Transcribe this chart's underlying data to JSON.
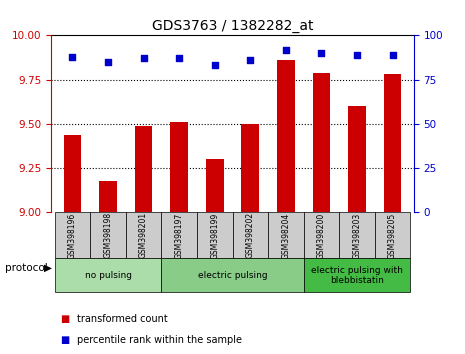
{
  "title": "GDS3763 / 1382282_at",
  "samples": [
    "GSM398196",
    "GSM398198",
    "GSM398201",
    "GSM398197",
    "GSM398199",
    "GSM398202",
    "GSM398204",
    "GSM398200",
    "GSM398203",
    "GSM398205"
  ],
  "transformed_count": [
    9.44,
    9.18,
    9.49,
    9.51,
    9.3,
    9.5,
    9.86,
    9.79,
    9.6,
    9.78
  ],
  "percentile_rank": [
    88,
    85,
    87,
    87,
    83,
    86,
    92,
    90,
    89,
    89
  ],
  "ylim_left": [
    9.0,
    10.0
  ],
  "ylim_right": [
    0,
    100
  ],
  "yticks_left": [
    9.0,
    9.25,
    9.5,
    9.75,
    10.0
  ],
  "yticks_right": [
    0,
    25,
    50,
    75,
    100
  ],
  "bar_color": "#cc0000",
  "dot_color": "#0000cc",
  "groups": [
    {
      "label": "no pulsing",
      "start": 0,
      "end": 3,
      "color": "#aaddaa"
    },
    {
      "label": "electric pulsing",
      "start": 3,
      "end": 7,
      "color": "#88cc88"
    },
    {
      "label": "electric pulsing with\nblebbistatin",
      "start": 7,
      "end": 10,
      "color": "#44bb44"
    }
  ],
  "protocol_label": "protocol",
  "legend_items": [
    {
      "label": "transformed count",
      "color": "#cc0000"
    },
    {
      "label": "percentile rank within the sample",
      "color": "#0000cc"
    }
  ],
  "tick_label_color_left": "#cc0000",
  "tick_label_color_right": "#0000cc",
  "background_color": "#ffffff",
  "cell_bg_color": "#cccccc",
  "cell_edge_color": "#000000"
}
